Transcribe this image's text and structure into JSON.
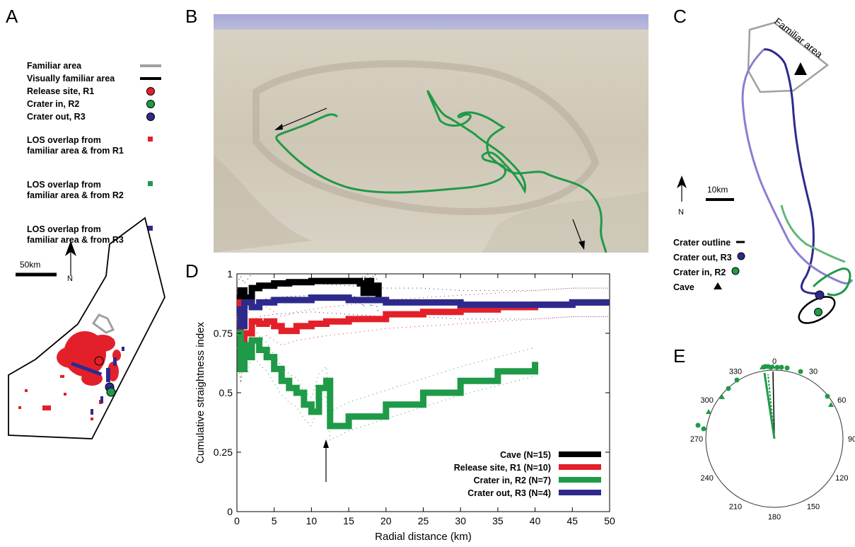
{
  "panels": {
    "a": "A",
    "b": "B",
    "c": "C",
    "d": "D",
    "e": "E"
  },
  "panel_a": {
    "legend": [
      {
        "label": "Familiar area",
        "symbol": "gray-line",
        "color": "#a0a0a0"
      },
      {
        "label": "Visually familiar area",
        "symbol": "black-line",
        "color": "#000000"
      },
      {
        "label": "Release site, R1",
        "symbol": "circle",
        "color": "#e3202a"
      },
      {
        "label": "Crater in, R2",
        "symbol": "circle",
        "color": "#1f9a48"
      },
      {
        "label": "Crater out, R3",
        "symbol": "circle",
        "color": "#2e2a8c"
      },
      {
        "label": "LOS overlap from\nfamiliar area & from R1",
        "symbol": "square",
        "color": "#e3202a"
      },
      {
        "label": "LOS overlap from\nfamiliar area & from R2",
        "symbol": "square",
        "color": "#1f9a48"
      },
      {
        "label": "LOS overlap from\nfamiliar area & from R3",
        "symbol": "square",
        "color": "#2e2a8c"
      }
    ],
    "scale_label": "50km",
    "north": "N"
  },
  "panel_c": {
    "area_label": "Familiar area",
    "scale_label": "10km",
    "north": "N",
    "legend": [
      {
        "label": "Crater outline",
        "symbol": "dash"
      },
      {
        "label": "Crater out, R3",
        "symbol": "circle",
        "color": "#2e2a8c"
      },
      {
        "label": "Crater in, R2",
        "symbol": "circle",
        "color": "#1f9a48"
      },
      {
        "label": "Cave",
        "symbol": "triangle"
      }
    ]
  },
  "panel_e": {
    "angle_labels": [
      "0",
      "30",
      "60",
      "90",
      "120",
      "150",
      "180",
      "210",
      "240",
      "270",
      "300",
      "330"
    ]
  },
  "colors": {
    "cave": "#000000",
    "release": "#e3202a",
    "crater_in": "#1f9a48",
    "crater_out": "#2e2a8c",
    "crater_out_light": "#8a7fd0",
    "crater_in_light": "#62b878"
  },
  "chart_data": {
    "type": "line",
    "title": "",
    "xlabel": "Radial distance (km)",
    "ylabel": "Cumulative straightness index",
    "xlim": [
      0,
      50
    ],
    "ylim": [
      0,
      1
    ],
    "xticks": [
      "0",
      "5",
      "10",
      "15",
      "20",
      "25",
      "30",
      "35",
      "40",
      "45",
      "50"
    ],
    "yticks": [
      "0",
      "0.25",
      "0.5",
      "0.75",
      "1"
    ],
    "legend_position": "bottom-right",
    "series": [
      {
        "name": "Cave (N=15)",
        "color": "#000000",
        "x": [
          0,
          0.5,
          1,
          2,
          3,
          5,
          7,
          10,
          13,
          15,
          16.5,
          17,
          17.5,
          18,
          18.5,
          19
        ],
        "y": [
          0.9,
          0.93,
          0.9,
          0.94,
          0.95,
          0.96,
          0.965,
          0.97,
          0.97,
          0.97,
          0.96,
          0.92,
          0.97,
          0.92,
          0.95,
          0.9
        ]
      },
      {
        "name": "Release site, R1 (N=10)",
        "color": "#e3202a",
        "x": [
          0,
          0.5,
          1,
          2,
          3,
          4,
          5,
          6,
          8,
          10,
          12,
          15,
          20,
          25,
          30,
          35,
          40,
          45,
          50
        ],
        "y": [
          0.88,
          0.6,
          0.75,
          0.8,
          0.79,
          0.8,
          0.78,
          0.76,
          0.78,
          0.79,
          0.8,
          0.81,
          0.83,
          0.84,
          0.85,
          0.86,
          0.87,
          0.88,
          0.88
        ]
      },
      {
        "name": "Crater in, R2 (N=7)",
        "color": "#1f9a48",
        "x": [
          0,
          0.5,
          1,
          1.5,
          2,
          3,
          4,
          5,
          6,
          7,
          8,
          9,
          10,
          11,
          12,
          12.5,
          15,
          20,
          25,
          30,
          35,
          40
        ],
        "y": [
          0.75,
          0.6,
          0.7,
          0.65,
          0.72,
          0.68,
          0.65,
          0.6,
          0.55,
          0.52,
          0.5,
          0.45,
          0.42,
          0.52,
          0.55,
          0.36,
          0.4,
          0.45,
          0.5,
          0.55,
          0.59,
          0.63
        ]
      },
      {
        "name": "Crater out, R3 (N=4)",
        "color": "#2e2a8c",
        "x": [
          0,
          0.5,
          1,
          2,
          3,
          5,
          10,
          15,
          20,
          25,
          30,
          35,
          40,
          45,
          50
        ],
        "y": [
          0.85,
          0.78,
          0.88,
          0.86,
          0.88,
          0.89,
          0.9,
          0.89,
          0.88,
          0.88,
          0.87,
          0.87,
          0.87,
          0.88,
          0.88
        ]
      }
    ],
    "annotation": "arrow at 12 km"
  }
}
